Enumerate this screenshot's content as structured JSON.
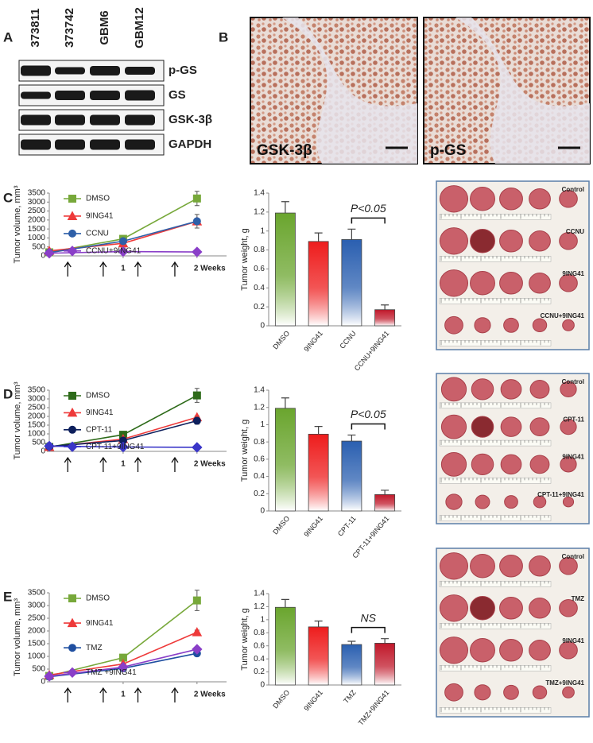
{
  "figure": {
    "A": {
      "label": "A",
      "lanes": [
        "373811",
        "373742",
        "GBM6",
        "GBM12"
      ],
      "bands": [
        "p-GS",
        "GS",
        "GSK-3β",
        "GAPDH"
      ]
    },
    "B": {
      "label": "B",
      "images": [
        "GSK-3β",
        "p-GS"
      ]
    },
    "C": {
      "label": "C",
      "photo_labels": [
        "Control",
        "CCNU",
        "9ING41",
        "CCNU+9ING41"
      ]
    },
    "D": {
      "label": "D",
      "photo_labels": [
        "Control",
        "CPT-11",
        "9ING41",
        "CPT-11+9ING41"
      ]
    },
    "E": {
      "label": "E",
      "photo_labels": [
        "Control",
        "TMZ",
        "9ING41",
        "TMZ+9ING41"
      ]
    }
  },
  "chart_data": [
    {
      "type": "line",
      "y_label": "Tumor volume, mm³",
      "x": [
        0,
        1,
        2
      ],
      "xlim": [
        0,
        2.4
      ],
      "xticks": [
        1,
        {
          "value": 2,
          "label": "2 Weeks"
        }
      ],
      "ylim": [
        0,
        3500
      ],
      "yticks": [
        0,
        500,
        1000,
        1500,
        2000,
        2500,
        3000,
        3500
      ],
      "series": [
        {
          "name": "DMSO",
          "color": "#77a83a",
          "marker": "square",
          "values": [
            200,
            950,
            3200
          ],
          "errors": [
            null,
            null,
            400
          ]
        },
        {
          "name": "9ING41",
          "color": "#ee3a3a",
          "marker": "triangle",
          "values": [
            280,
            700,
            1920
          ],
          "errors": [
            null,
            null,
            null
          ]
        },
        {
          "name": "CCNU",
          "color": "#2e5fa8",
          "marker": "circle",
          "values": [
            180,
            820,
            1930
          ],
          "errors": [
            null,
            null,
            380
          ]
        },
        {
          "name": "CCNU+9ING41",
          "color": "#8a3fc8",
          "marker": "diamond",
          "values": [
            150,
            240,
            220
          ],
          "errors": [
            null,
            null,
            null
          ]
        }
      ]
    },
    {
      "type": "bar",
      "y_label": "Tumor weight, g",
      "categories": [
        "DMSO",
        "9ING41",
        "CCNU",
        "CCNU+9ING41"
      ],
      "values": [
        1.19,
        0.89,
        0.91,
        0.17
      ],
      "errors": [
        0.12,
        0.09,
        0.11,
        0.05
      ],
      "colors": [
        "#6aa52e",
        "#ee1c1c",
        "#2a5fb0",
        "#c0182a"
      ],
      "ylim": [
        0,
        1.4
      ],
      "yticks": [
        0,
        0.2,
        0.4,
        0.6,
        0.8,
        1,
        1.2,
        1.4
      ],
      "annotation": "P<0.05",
      "bracket": [
        2,
        3
      ]
    },
    {
      "type": "line",
      "y_label": "Tumor volume, mm³",
      "x": [
        0,
        1,
        2
      ],
      "xlim": [
        0,
        2.4
      ],
      "xticks": [
        1,
        {
          "value": 2,
          "label": "2 Weeks"
        }
      ],
      "ylim": [
        0,
        3500
      ],
      "yticks": [
        0,
        500,
        1000,
        1500,
        2000,
        2500,
        3000,
        3500
      ],
      "series": [
        {
          "name": "DMSO",
          "color": "#2e6b1a",
          "marker": "square",
          "values": [
            250,
            950,
            3200
          ],
          "errors": [
            null,
            null,
            400
          ]
        },
        {
          "name": "9ING41",
          "color": "#ee3a3a",
          "marker": "triangle",
          "values": [
            250,
            700,
            1950
          ],
          "errors": [
            null,
            null,
            80
          ]
        },
        {
          "name": "CPT-11",
          "color": "#0d1f5c",
          "marker": "circle",
          "values": [
            280,
            620,
            1750
          ],
          "errors": [
            null,
            null,
            200
          ]
        },
        {
          "name": "CPT-11+9ING41",
          "color": "#3a36c8",
          "marker": "diamond",
          "values": [
            300,
            250,
            230
          ],
          "errors": [
            null,
            null,
            null
          ]
        }
      ]
    },
    {
      "type": "bar",
      "y_label": "Tumor weight, g",
      "categories": [
        "DMSO",
        "9ING41",
        "CPT-11",
        "CPT-11+9ING41"
      ],
      "values": [
        1.19,
        0.89,
        0.81,
        0.19
      ],
      "errors": [
        0.12,
        0.09,
        0.07,
        0.05
      ],
      "colors": [
        "#6aa52e",
        "#ee1c1c",
        "#2a5fb0",
        "#c0182a"
      ],
      "ylim": [
        0,
        1.4
      ],
      "yticks": [
        0,
        0.2,
        0.4,
        0.6,
        0.8,
        1,
        1.2,
        1.4
      ],
      "annotation": "P<0.05",
      "bracket": [
        2,
        3
      ]
    },
    {
      "type": "line",
      "y_label": "Tumor volume, mm³",
      "x": [
        0,
        1,
        2
      ],
      "xlim": [
        0,
        2.4
      ],
      "xticks": [
        1,
        {
          "value": 2,
          "label": "2 Weeks"
        }
      ],
      "ylim": [
        0,
        3500
      ],
      "yticks": [
        0,
        500,
        1000,
        1500,
        2000,
        2500,
        3000,
        3500
      ],
      "series": [
        {
          "name": "DMSO",
          "color": "#77a83a",
          "marker": "square",
          "values": [
            230,
            950,
            3200
          ],
          "errors": [
            null,
            null,
            400
          ]
        },
        {
          "name": "9ING41",
          "color": "#ee3a3a",
          "marker": "triangle",
          "values": [
            270,
            700,
            1950
          ],
          "errors": [
            null,
            null,
            80
          ]
        },
        {
          "name": "TMZ",
          "color": "#1f4fa0",
          "marker": "circle",
          "values": [
            200,
            530,
            1120
          ],
          "errors": [
            null,
            null,
            80
          ]
        },
        {
          "name": "TMZ +9ING41",
          "color": "#8a3fc8",
          "marker": "diamond",
          "values": [
            220,
            580,
            1280
          ],
          "errors": [
            null,
            null,
            80
          ]
        }
      ]
    },
    {
      "type": "bar",
      "y_label": "Tumor weight, g",
      "categories": [
        "DMSO",
        "9ING41",
        "TMZ",
        "TMZ+9ING41"
      ],
      "values": [
        1.19,
        0.89,
        0.62,
        0.64
      ],
      "errors": [
        0.12,
        0.09,
        0.05,
        0.07
      ],
      "colors": [
        "#6aa52e",
        "#ee1c1c",
        "#2a5fb0",
        "#c0182a"
      ],
      "ylim": [
        0,
        1.4
      ],
      "yticks": [
        0,
        0.2,
        0.4,
        0.6,
        0.8,
        1,
        1.2,
        1.4
      ],
      "annotation": "NS",
      "bracket": [
        2,
        3
      ]
    }
  ]
}
